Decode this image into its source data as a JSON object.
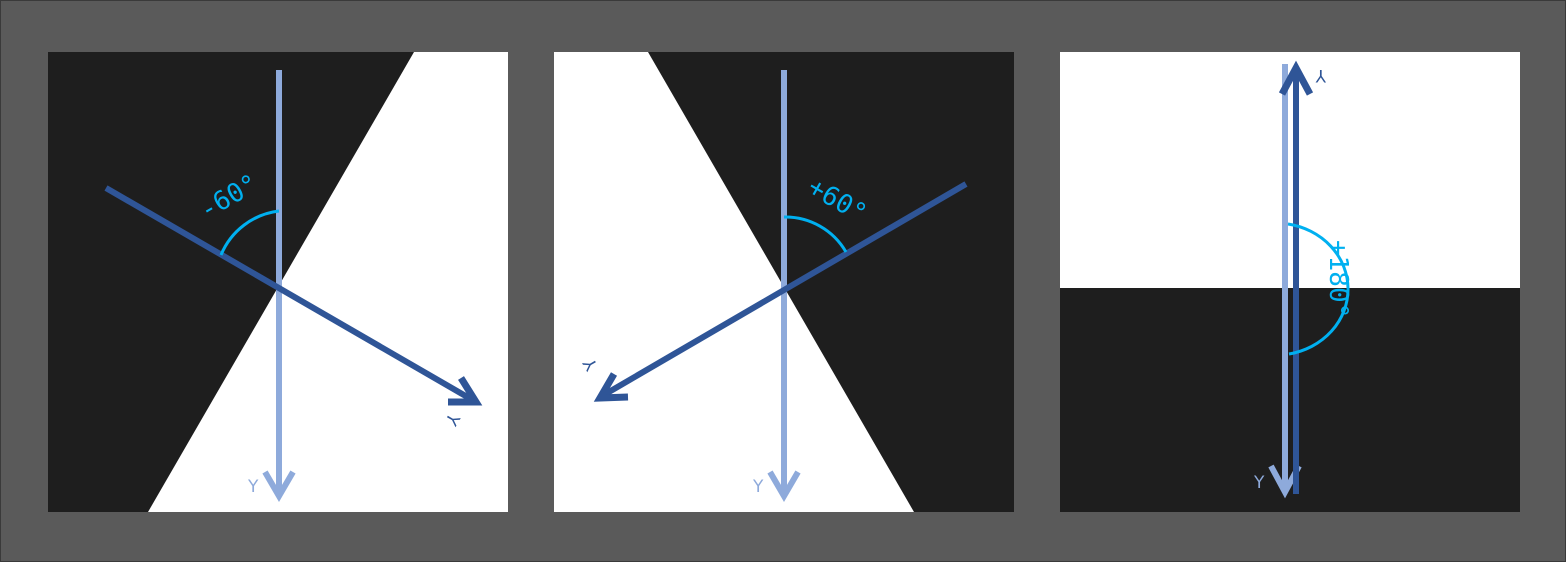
{
  "colors": {
    "background": "#5a5a5a",
    "dark_region": "#1e1e1e",
    "light_region": "#ffffff",
    "original_axis": "#8eaadb",
    "rotated_axis": "#2f5597",
    "angle_annotation": "#00b0f0"
  },
  "panels": [
    {
      "angle": -60,
      "angle_label": "-60°",
      "original_axis_label": "Y",
      "rotated_axis_label": "Y"
    },
    {
      "angle": 60,
      "angle_label": "+60°",
      "original_axis_label": "Y",
      "rotated_axis_label": "Y"
    },
    {
      "angle": 180,
      "angle_label": "+180°",
      "original_axis_label": "Y",
      "rotated_axis_label": "Y"
    }
  ]
}
